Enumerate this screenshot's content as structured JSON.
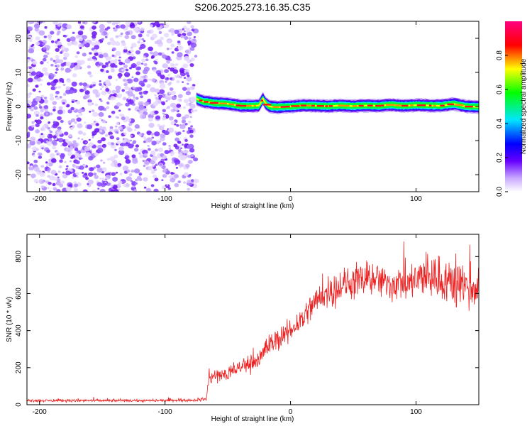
{
  "title": "S206.2025.273.16.35.C35",
  "chart_data": [
    {
      "type": "heatmap",
      "xlabel": "Height of straight line (km)",
      "ylabel": "Frequency (Hz)",
      "xlim": [
        -210,
        150
      ],
      "ylim": [
        -25,
        25
      ],
      "xticks": [
        -200,
        -100,
        0,
        100
      ],
      "yticks": [
        -20,
        -10,
        0,
        10,
        20
      ],
      "noise_region_x": [
        -210,
        -75
      ],
      "signal_start_x": -75,
      "ridge": {
        "x": [
          -75,
          -70,
          -60,
          -50,
          -40,
          -30,
          -25,
          -22,
          -20,
          -17,
          -10,
          0,
          10,
          20,
          30,
          40,
          50,
          60,
          70,
          80,
          90,
          100,
          110,
          120,
          130,
          140,
          150
        ],
        "y": [
          2.3,
          1.5,
          1.0,
          0.8,
          0.2,
          0.2,
          0.3,
          2.3,
          1.0,
          0.0,
          -0.2,
          0.0,
          0.3,
          0.2,
          0.1,
          0.3,
          0.1,
          0.3,
          0.2,
          0.5,
          0.2,
          0.4,
          0.3,
          0.2,
          0.8,
          0.0,
          -0.1
        ]
      },
      "colorbar": {
        "label": "Normalized spectral amplitude",
        "range": [
          0,
          1
        ],
        "ticks": [
          0.0,
          0.2,
          0.4,
          0.6,
          0.8
        ],
        "tick_labels": [
          "0.0",
          "0.2",
          "0.4",
          "0.6",
          "0.8"
        ],
        "colors": [
          "#ffffff",
          "#6600ff",
          "#0000ff",
          "#00e5ff",
          "#00ff00",
          "#ffff00",
          "#ff0000",
          "#ff0080"
        ]
      }
    },
    {
      "type": "line",
      "xlabel": "Height of straight line (km)",
      "ylabel": "SNR (10 * v/v)",
      "xlim": [
        -210,
        150
      ],
      "ylim": [
        0,
        920
      ],
      "xticks": [
        -200,
        -100,
        0,
        100
      ],
      "yticks": [
        0,
        200,
        400,
        600,
        800
      ],
      "color": "#ee2222",
      "series": [
        {
          "name": "SNR",
          "x": [
            -210,
            -150,
            -100,
            -75,
            -67,
            -65,
            -60,
            -55,
            -50,
            -45,
            -40,
            -30,
            -25,
            -20,
            -15,
            -10,
            0,
            10,
            20,
            30,
            40,
            50,
            60,
            70,
            80,
            90,
            100,
            110,
            120,
            130,
            140,
            150
          ],
          "y": [
            22,
            22,
            22,
            25,
            30,
            150,
            150,
            160,
            165,
            180,
            200,
            230,
            245,
            300,
            335,
            350,
            400,
            470,
            560,
            610,
            640,
            660,
            670,
            665,
            650,
            660,
            670,
            690,
            680,
            660,
            650,
            640
          ],
          "noise": [
            8,
            8,
            8,
            8,
            10,
            55,
            50,
            50,
            50,
            50,
            50,
            55,
            55,
            60,
            60,
            65,
            70,
            80,
            90,
            100,
            100,
            100,
            100,
            100,
            100,
            110,
            120,
            140,
            140,
            140,
            140,
            140
          ]
        }
      ]
    }
  ]
}
